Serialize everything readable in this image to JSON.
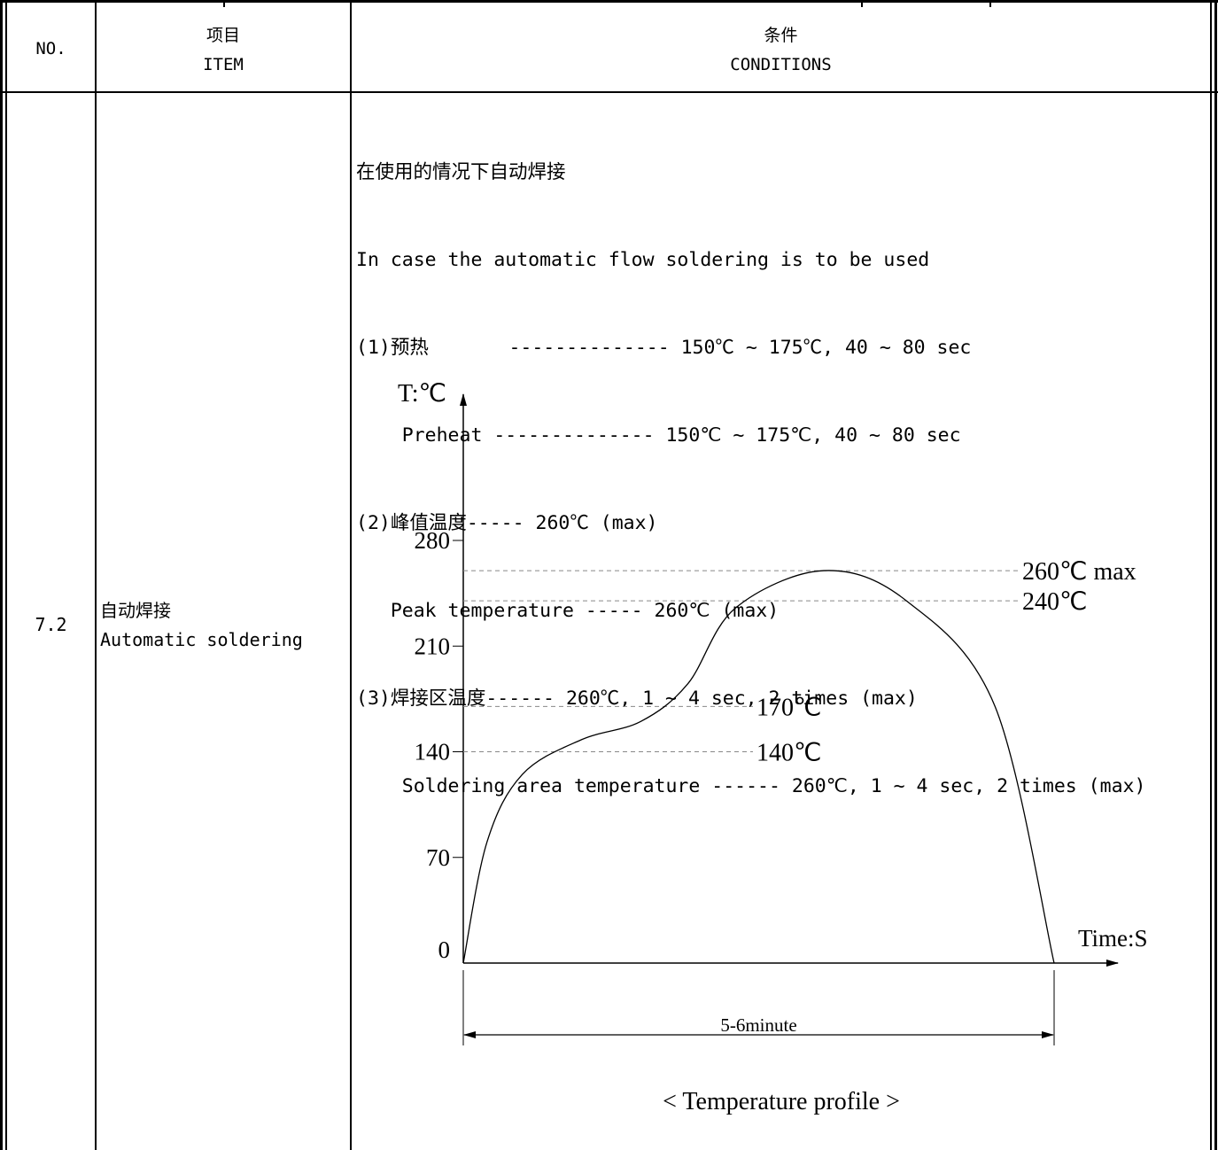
{
  "header": {
    "no_label": "NO.",
    "item_zh": "项目",
    "item_en": "ITEM",
    "cond_zh": "条件",
    "cond_en": "CONDITIONS"
  },
  "row": {
    "number": "7.2",
    "item_zh": "自动焊接",
    "item_en": "Automatic soldering"
  },
  "conditions": {
    "lines": [
      "在使用的情况下自动焊接",
      "In case the automatic flow soldering is to be used",
      "(1)预热       -------------- 150℃ ~ 175℃, 40 ~ 80 sec",
      "    Preheat -------------- 150℃ ~ 175℃, 40 ~ 80 sec",
      "(2)峰值温度----- 260℃ (max)",
      "   Peak temperature ----- 260℃ (max)",
      "(3)焊接区温度------ 260℃, 1 ~ 4 sec, 2 times (max)",
      "    Soldering area temperature ------ 260℃, 1 ~ 4 sec, 2 times (max)"
    ]
  },
  "chart_data": {
    "type": "line",
    "title": "",
    "caption": "< Temperature profile >",
    "ylabel": "T:℃",
    "xlabel": "Time:S",
    "yticks": [
      0,
      70,
      140,
      210,
      280
    ],
    "ylim": [
      0,
      280
    ],
    "duration_label": "5-6minute",
    "reference_lines": [
      {
        "value": 260,
        "label": "260℃ max"
      },
      {
        "value": 240,
        "label": "240℃"
      },
      {
        "value": 170,
        "label": "170℃"
      },
      {
        "value": 140,
        "label": "140℃"
      }
    ],
    "series": [
      {
        "values": [
          {
            "t": 0.0,
            "y": 0
          },
          {
            "t": 0.04,
            "y": 80
          },
          {
            "t": 0.1,
            "y": 125
          },
          {
            "t": 0.2,
            "y": 148
          },
          {
            "t": 0.3,
            "y": 160
          },
          {
            "t": 0.38,
            "y": 185
          },
          {
            "t": 0.46,
            "y": 235
          },
          {
            "t": 0.61,
            "y": 260
          },
          {
            "t": 0.75,
            "y": 240
          },
          {
            "t": 0.9,
            "y": 170
          },
          {
            "t": 1.0,
            "y": 0
          }
        ]
      }
    ]
  }
}
